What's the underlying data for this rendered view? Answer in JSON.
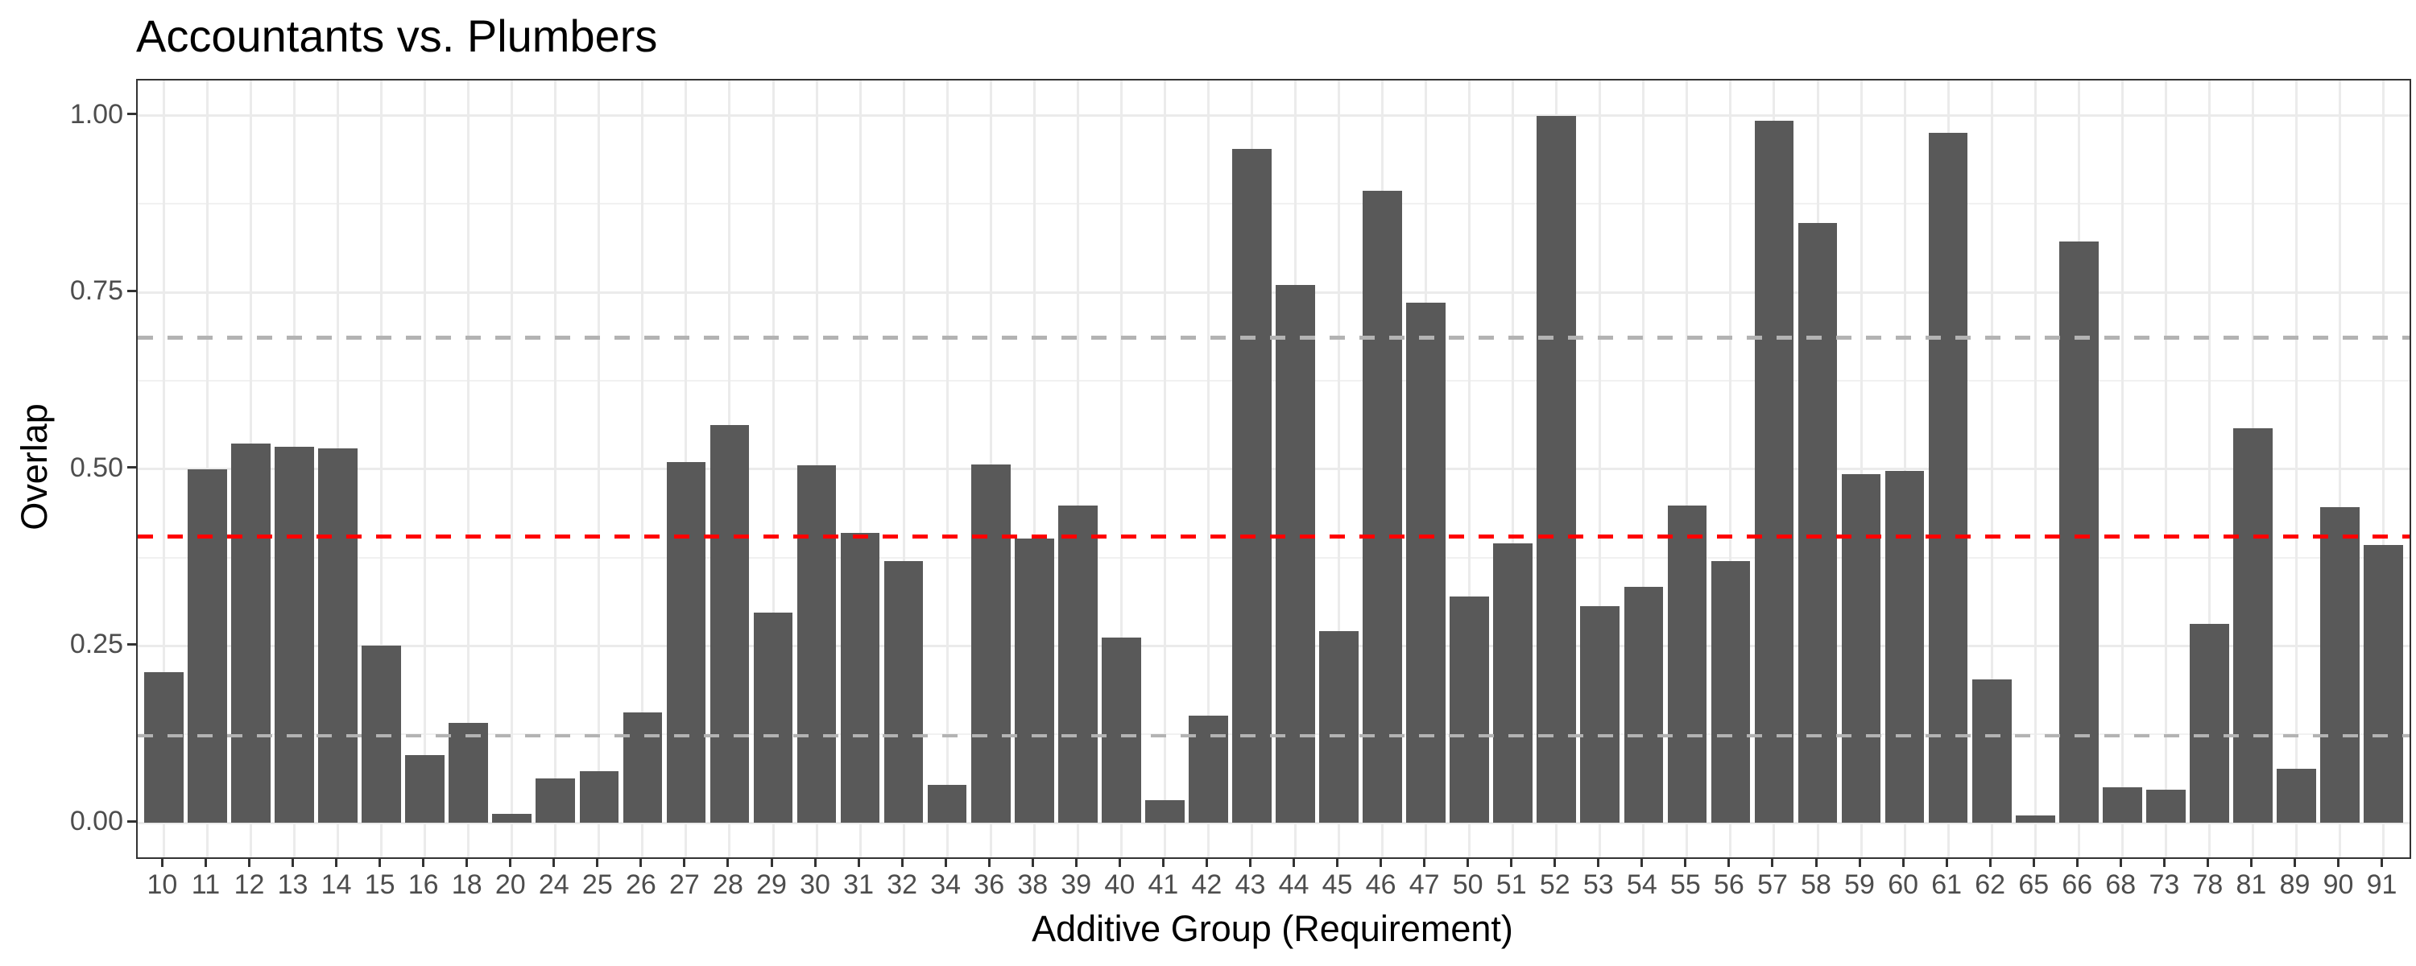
{
  "chart_data": {
    "type": "bar",
    "title": "Accountants vs. Plumbers",
    "xlabel": "Additive Group (Requirement)",
    "ylabel": "Overlap",
    "categories": [
      "10",
      "11",
      "12",
      "13",
      "14",
      "15",
      "16",
      "18",
      "20",
      "24",
      "25",
      "26",
      "27",
      "28",
      "29",
      "30",
      "31",
      "32",
      "34",
      "36",
      "38",
      "39",
      "40",
      "41",
      "42",
      "43",
      "44",
      "45",
      "46",
      "47",
      "50",
      "51",
      "52",
      "53",
      "54",
      "55",
      "56",
      "57",
      "58",
      "59",
      "60",
      "61",
      "62",
      "65",
      "66",
      "68",
      "73",
      "78",
      "81",
      "89",
      "90",
      "91"
    ],
    "values": [
      0.213,
      0.5,
      0.536,
      0.532,
      0.53,
      0.25,
      0.096,
      0.141,
      0.013,
      0.063,
      0.073,
      0.156,
      0.51,
      0.562,
      0.297,
      0.506,
      0.41,
      0.37,
      0.054,
      0.507,
      0.402,
      0.449,
      0.262,
      0.032,
      0.151,
      0.953,
      0.76,
      0.271,
      0.894,
      0.735,
      0.32,
      0.395,
      1.0,
      0.306,
      0.334,
      0.449,
      0.37,
      0.993,
      0.848,
      0.493,
      0.497,
      0.976,
      0.203,
      0.01,
      0.822,
      0.05,
      0.047,
      0.281,
      0.558,
      0.076,
      0.446,
      0.393
    ],
    "bar_color": "#595959",
    "ylim": [
      0,
      1
    ],
    "y_ticks": [
      {
        "label": "1.00",
        "value": 1.0
      },
      {
        "label": "0.75",
        "value": 0.75
      },
      {
        "label": "0.50",
        "value": 0.5
      },
      {
        "label": "0.25",
        "value": 0.25
      },
      {
        "label": "0.00",
        "value": 0.0
      }
    ],
    "grid": {
      "major": [
        0,
        0.25,
        0.5,
        0.75,
        1.0
      ],
      "minor": [
        0.125,
        0.375,
        0.625,
        0.875
      ],
      "vertical": "one line per category"
    },
    "reference_lines": [
      {
        "name": "red-dashed-line",
        "value": 0.405,
        "color": "#FF0000",
        "style": "dashed"
      },
      {
        "name": "gray-dashed-line-upper",
        "value": 0.686,
        "color": "#B3B3B3",
        "style": "dashed"
      },
      {
        "name": "gray-dashed-line-lower",
        "value": 0.123,
        "color": "#B3B3B3",
        "style": "dashed"
      }
    ],
    "legend_position": "none"
  }
}
